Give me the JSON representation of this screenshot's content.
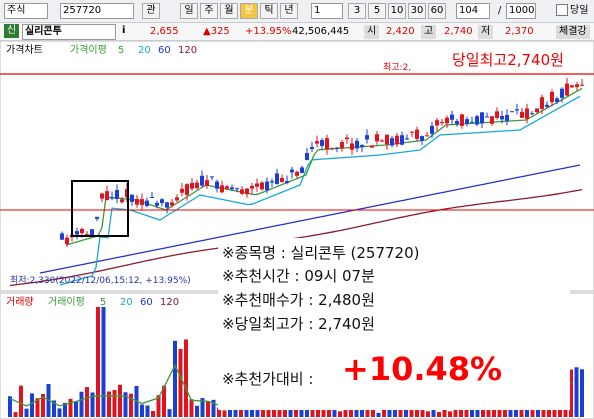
{
  "toolbar": {
    "market": "주식",
    "code": "257720",
    "fav": "관",
    "periods": [
      "일",
      "주",
      "월",
      "분",
      "틱",
      "년"
    ],
    "unit": "1",
    "minutes": [
      "3",
      "5",
      "10",
      "30",
      "60"
    ],
    "count": "104",
    "slash": "/",
    "total": "1000",
    "today": "당일"
  },
  "quote": {
    "badge": "신",
    "name": "실리콘투",
    "info": "i",
    "price": "2,655",
    "change": "▲325",
    "rate": "+13.95%",
    "volume": "42,506,445",
    "open_label": "시",
    "open": "2,420",
    "high_label": "고",
    "high": "2,740",
    "low_label": "저",
    "low": "2,370",
    "strength": "체결강"
  },
  "chart": {
    "price_tab": "가격차트",
    "price_ma": "가격이평",
    "ma_periods": [
      "5",
      "20",
      "60",
      "120"
    ],
    "high_marker": "최고:2,",
    "high_note": "당일최고2,740원",
    "low_marker": "최저:2,330(2022/12/06,15:12, +13.95%)",
    "volume_tab": "거래량",
    "volume_ma": "거래이평",
    "volume_ma_periods": [
      "5",
      "20",
      "60",
      "120"
    ]
  },
  "info": {
    "lines": [
      "※종목명 : 실리콘투 (257720)",
      "※추천시간 : 09시 07분",
      "※추천매수가 : 2,480원",
      "※당일최고가 : 2,740원"
    ],
    "compare_label": "※추천가대비 :",
    "compare_value": "+10.48%"
  }
}
